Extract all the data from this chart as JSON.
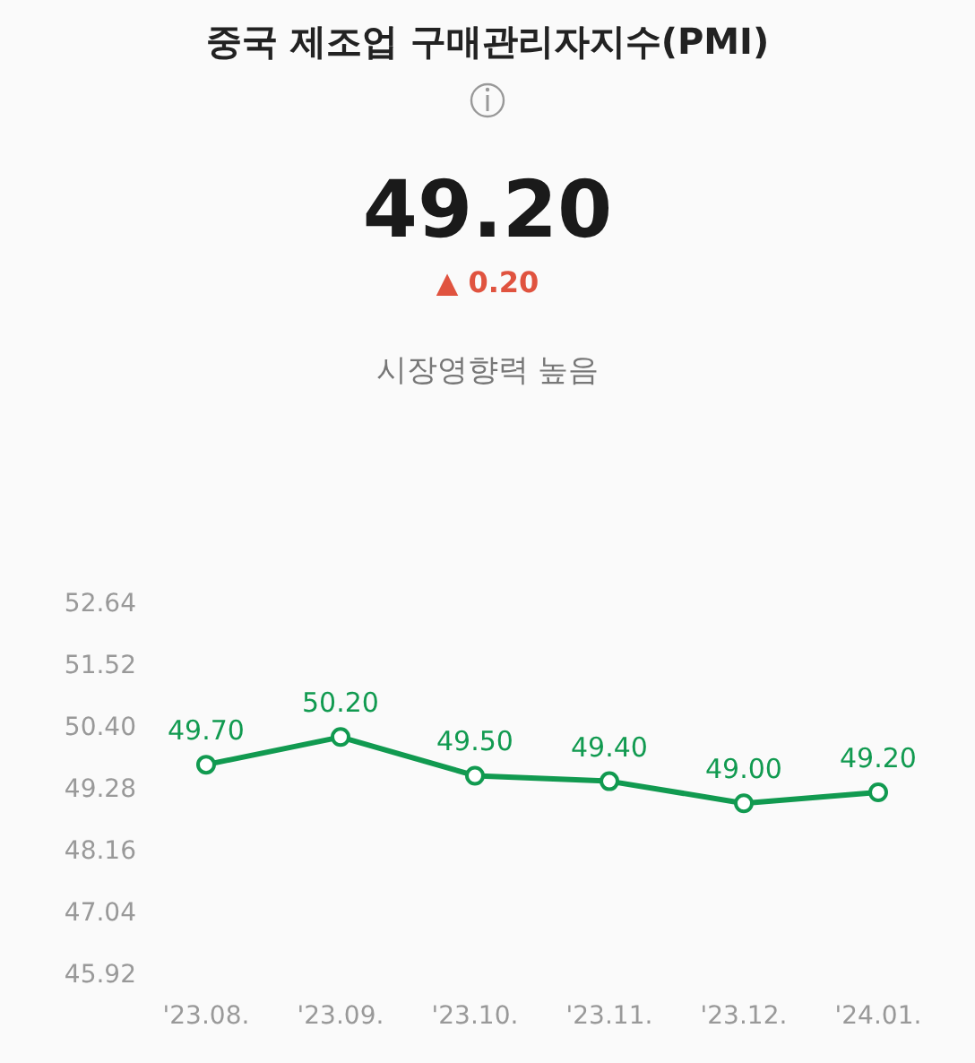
{
  "chart_data": {
    "type": "line",
    "title": "중국 제조업 구매관리자지수(PMI)",
    "annotations": [
      "49.20",
      "▲ 0.20",
      "시장영향력 높음"
    ],
    "categories": [
      "'23.08.",
      "'23.09.",
      "'23.10.",
      "'23.11.",
      "'23.12.",
      "'24.01."
    ],
    "series": [
      {
        "color": "#119a50",
        "values": [
          49.7,
          50.2,
          49.5,
          49.4,
          49.0,
          49.2
        ],
        "value_labels": [
          "49.70",
          "50.20",
          "49.50",
          "49.40",
          "49.00",
          "49.20"
        ]
      }
    ],
    "ylim": [
      45.92,
      52.64
    ],
    "yticks": [
      45.92,
      47.04,
      48.16,
      49.28,
      {
        "value": 50.4,
        "label": "50.40"
      },
      51.52,
      52.64
    ],
    "marker": "circle"
  }
}
